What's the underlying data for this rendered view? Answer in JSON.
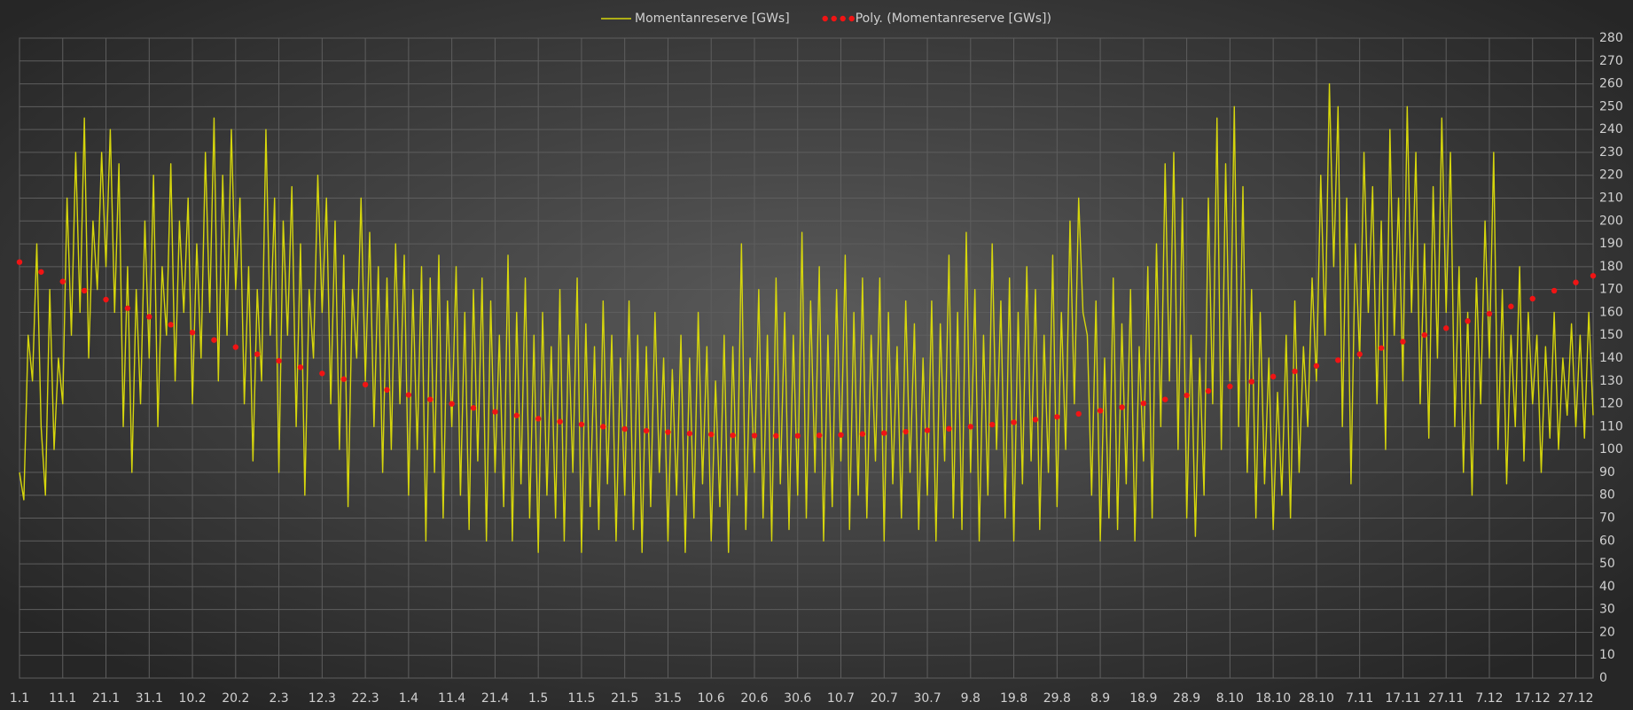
{
  "chart_data": {
    "type": "line",
    "legend": "top",
    "grid": true,
    "y_axis_side": "right",
    "xlim": [
      0,
      364
    ],
    "xticks": [
      {
        "value": 0,
        "label": "1.1"
      },
      {
        "value": 10,
        "label": "11.1"
      },
      {
        "value": 20,
        "label": "21.1"
      },
      {
        "value": 30,
        "label": "31.1"
      },
      {
        "value": 40,
        "label": "10.2"
      },
      {
        "value": 50,
        "label": "20.2"
      },
      {
        "value": 60,
        "label": "2.3"
      },
      {
        "value": 70,
        "label": "12.3"
      },
      {
        "value": 80,
        "label": "22.3"
      },
      {
        "value": 90,
        "label": "1.4"
      },
      {
        "value": 100,
        "label": "11.4"
      },
      {
        "value": 110,
        "label": "21.4"
      },
      {
        "value": 120,
        "label": "1.5"
      },
      {
        "value": 130,
        "label": "11.5"
      },
      {
        "value": 140,
        "label": "21.5"
      },
      {
        "value": 150,
        "label": "31.5"
      },
      {
        "value": 160,
        "label": "10.6"
      },
      {
        "value": 170,
        "label": "20.6"
      },
      {
        "value": 180,
        "label": "30.6"
      },
      {
        "value": 190,
        "label": "10.7"
      },
      {
        "value": 200,
        "label": "20.7"
      },
      {
        "value": 210,
        "label": "30.7"
      },
      {
        "value": 220,
        "label": "9.8"
      },
      {
        "value": 230,
        "label": "19.8"
      },
      {
        "value": 240,
        "label": "29.8"
      },
      {
        "value": 250,
        "label": "8.9"
      },
      {
        "value": 260,
        "label": "18.9"
      },
      {
        "value": 270,
        "label": "28.9"
      },
      {
        "value": 280,
        "label": "8.10"
      },
      {
        "value": 290,
        "label": "18.10"
      },
      {
        "value": 300,
        "label": "28.10"
      },
      {
        "value": 310,
        "label": "7.11"
      },
      {
        "value": 320,
        "label": "17.11"
      },
      {
        "value": 330,
        "label": "27.11"
      },
      {
        "value": 340,
        "label": "7.12"
      },
      {
        "value": 350,
        "label": "17.12"
      },
      {
        "value": 360,
        "label": "27.12"
      }
    ],
    "ylim": [
      0,
      280
    ],
    "yticks": [
      0,
      10,
      20,
      30,
      40,
      50,
      60,
      70,
      80,
      90,
      100,
      110,
      120,
      130,
      140,
      150,
      160,
      170,
      180,
      190,
      200,
      210,
      220,
      230,
      240,
      250,
      260,
      270,
      280
    ],
    "series": [
      {
        "name": "Momentanreserve [GWs]",
        "color": "#d6d60c",
        "style": "solid",
        "x": [
          0,
          1,
          2,
          3,
          4,
          5,
          6,
          7,
          8,
          9,
          10,
          11,
          12,
          13,
          14,
          15,
          16,
          17,
          18,
          19,
          20,
          21,
          22,
          23,
          24,
          25,
          26,
          27,
          28,
          29,
          30,
          31,
          32,
          33,
          34,
          35,
          36,
          37,
          38,
          39,
          40,
          41,
          42,
          43,
          44,
          45,
          46,
          47,
          48,
          49,
          50,
          51,
          52,
          53,
          54,
          55,
          56,
          57,
          58,
          59,
          60,
          61,
          62,
          63,
          64,
          65,
          66,
          67,
          68,
          69,
          70,
          71,
          72,
          73,
          74,
          75,
          76,
          77,
          78,
          79,
          80,
          81,
          82,
          83,
          84,
          85,
          86,
          87,
          88,
          89,
          90,
          91,
          92,
          93,
          94,
          95,
          96,
          97,
          98,
          99,
          100,
          101,
          102,
          103,
          104,
          105,
          106,
          107,
          108,
          109,
          110,
          111,
          112,
          113,
          114,
          115,
          116,
          117,
          118,
          119,
          120,
          121,
          122,
          123,
          124,
          125,
          126,
          127,
          128,
          129,
          130,
          131,
          132,
          133,
          134,
          135,
          136,
          137,
          138,
          139,
          140,
          141,
          142,
          143,
          144,
          145,
          146,
          147,
          148,
          149,
          150,
          151,
          152,
          153,
          154,
          155,
          156,
          157,
          158,
          159,
          160,
          161,
          162,
          163,
          164,
          165,
          166,
          167,
          168,
          169,
          170,
          171,
          172,
          173,
          174,
          175,
          176,
          177,
          178,
          179,
          180,
          181,
          182,
          183,
          184,
          185,
          186,
          187,
          188,
          189,
          190,
          191,
          192,
          193,
          194,
          195,
          196,
          197,
          198,
          199,
          200,
          201,
          202,
          203,
          204,
          205,
          206,
          207,
          208,
          209,
          210,
          211,
          212,
          213,
          214,
          215,
          216,
          217,
          218,
          219,
          220,
          221,
          222,
          223,
          224,
          225,
          226,
          227,
          228,
          229,
          230,
          231,
          232,
          233,
          234,
          235,
          236,
          237,
          238,
          239,
          240,
          241,
          242,
          243,
          244,
          245,
          246,
          247,
          248,
          249,
          250,
          251,
          252,
          253,
          254,
          255,
          256,
          257,
          258,
          259,
          260,
          261,
          262,
          263,
          264,
          265,
          266,
          267,
          268,
          269,
          270,
          271,
          272,
          273,
          274,
          275,
          276,
          277,
          278,
          279,
          280,
          281,
          282,
          283,
          284,
          285,
          286,
          287,
          288,
          289,
          290,
          291,
          292,
          293,
          294,
          295,
          296,
          297,
          298,
          299,
          300,
          301,
          302,
          303,
          304,
          305,
          306,
          307,
          308,
          309,
          310,
          311,
          312,
          313,
          314,
          315,
          316,
          317,
          318,
          319,
          320,
          321,
          322,
          323,
          324,
          325,
          326,
          327,
          328,
          329,
          330,
          331,
          332,
          333,
          334,
          335,
          336,
          337,
          338,
          339,
          340,
          341,
          342,
          343,
          344,
          345,
          346,
          347,
          348,
          349,
          350,
          351,
          352,
          353,
          354,
          355,
          356,
          357,
          358,
          359,
          360,
          361,
          362,
          363,
          364
        ],
        "values": [
          90,
          78,
          150,
          130,
          190,
          110,
          80,
          170,
          100,
          140,
          120,
          210,
          150,
          230,
          160,
          245,
          140,
          200,
          170,
          230,
          180,
          240,
          160,
          225,
          110,
          180,
          90,
          170,
          120,
          200,
          140,
          220,
          110,
          180,
          150,
          225,
          130,
          200,
          160,
          210,
          120,
          190,
          140,
          230,
          160,
          245,
          130,
          220,
          150,
          240,
          170,
          210,
          120,
          180,
          95,
          170,
          130,
          240,
          150,
          210,
          90,
          200,
          150,
          215,
          110,
          190,
          80,
          170,
          140,
          220,
          160,
          210,
          120,
          200,
          100,
          185,
          75,
          170,
          140,
          210,
          130,
          195,
          110,
          180,
          90,
          175,
          100,
          190,
          120,
          185,
          80,
          170,
          100,
          180,
          60,
          175,
          90,
          185,
          70,
          165,
          110,
          180,
          80,
          160,
          65,
          170,
          95,
          175,
          60,
          165,
          90,
          150,
          75,
          185,
          60,
          160,
          85,
          175,
          70,
          150,
          55,
          160,
          80,
          145,
          70,
          170,
          60,
          150,
          90,
          175,
          55,
          155,
          75,
          145,
          65,
          165,
          85,
          150,
          60,
          140,
          80,
          165,
          65,
          150,
          55,
          145,
          75,
          160,
          90,
          140,
          60,
          135,
          80,
          150,
          55,
          140,
          70,
          160,
          85,
          145,
          60,
          130,
          75,
          150,
          55,
          145,
          80,
          190,
          65,
          140,
          90,
          170,
          70,
          150,
          60,
          175,
          85,
          160,
          65,
          150,
          80,
          195,
          70,
          165,
          90,
          180,
          60,
          150,
          75,
          170,
          95,
          185,
          65,
          160,
          80,
          175,
          70,
          150,
          95,
          175,
          60,
          160,
          85,
          145,
          70,
          165,
          90,
          155,
          65,
          140,
          80,
          165,
          60,
          155,
          95,
          185,
          70,
          160,
          65,
          195,
          90,
          170,
          60,
          150,
          80,
          190,
          100,
          165,
          70,
          175,
          60,
          160,
          85,
          180,
          95,
          170,
          65,
          150,
          90,
          185,
          75,
          160,
          100,
          200,
          120,
          210,
          160,
          150,
          80,
          165,
          60,
          140,
          70,
          175,
          65,
          155,
          85,
          170,
          60,
          145,
          95,
          180,
          70,
          190,
          110,
          225,
          130,
          230,
          100,
          210,
          70,
          150,
          62,
          140,
          80,
          210,
          120,
          245,
          100,
          225,
          130,
          250,
          110,
          215,
          90,
          170,
          70,
          160,
          85,
          140,
          65,
          125,
          80,
          150,
          70,
          165,
          90,
          145,
          110,
          175,
          130,
          220,
          150,
          260,
          180,
          250,
          110,
          210,
          85,
          190,
          140,
          230,
          160,
          215,
          120,
          200,
          100,
          240,
          150,
          210,
          130,
          250,
          160,
          230,
          120,
          190,
          105,
          215,
          140,
          245,
          160,
          230,
          110,
          180,
          90,
          160,
          80,
          175,
          120,
          200,
          140,
          230,
          100,
          170,
          85,
          150,
          110,
          180,
          95,
          160,
          120,
          150,
          90,
          145,
          105,
          160,
          100,
          140,
          115,
          155,
          110,
          150,
          105,
          160,
          115
        ]
      },
      {
        "name": "Poly. (Momentanreserve [GWs])",
        "color": "#f01414",
        "style": "dotted",
        "x": [
          0,
          5,
          10,
          15,
          20,
          25,
          30,
          35,
          40,
          45,
          50,
          55,
          60,
          65,
          70,
          75,
          80,
          85,
          90,
          95,
          100,
          105,
          110,
          115,
          120,
          125,
          130,
          135,
          140,
          145,
          150,
          155,
          160,
          165,
          170,
          175,
          180,
          185,
          190,
          195,
          200,
          205,
          210,
          215,
          220,
          225,
          230,
          235,
          240,
          245,
          250,
          255,
          260,
          265,
          270,
          275,
          280,
          285,
          290,
          295,
          300,
          305,
          310,
          315,
          320,
          325,
          330,
          335,
          340,
          345,
          350,
          355,
          360,
          364
        ],
        "values": [
          182,
          177.7,
          173.5,
          169.5,
          165.6,
          161.8,
          158.1,
          154.6,
          151.2,
          147.9,
          144.8,
          141.7,
          138.8,
          136,
          133.3,
          130.8,
          128.4,
          126.1,
          123.9,
          121.9,
          120,
          118.2,
          116.5,
          114.9,
          113.5,
          112.2,
          111,
          110,
          109,
          108.2,
          107.6,
          107,
          106.6,
          106.2,
          106.1,
          106,
          106,
          106.2,
          106.4,
          106.8,
          107.2,
          107.8,
          108.4,
          109.1,
          110,
          110.9,
          111.9,
          113.1,
          114.3,
          115.6,
          117,
          118.5,
          120.2,
          121.9,
          123.7,
          125.6,
          127.6,
          129.7,
          131.9,
          134.2,
          136.6,
          139.1,
          141.7,
          144.4,
          147.2,
          150.1,
          153.1,
          156.2,
          159.4,
          162.6,
          166,
          169.5,
          173.1,
          176
        ]
      }
    ]
  }
}
